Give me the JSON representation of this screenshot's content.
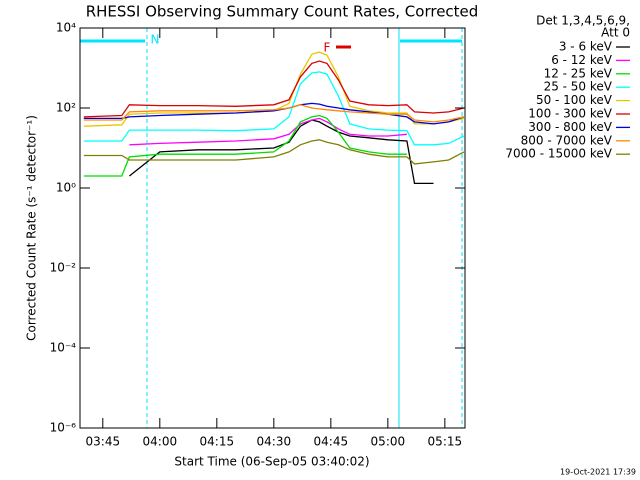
{
  "chart_data": {
    "type": "line",
    "title": "RHESSI Observing Summary Count Rates, Corrected",
    "xlabel": "Start Time (06-Sep-05 03:40:02)",
    "ylabel": "Corrected Count Rate (s⁻¹ detector⁻¹)",
    "legend_title": [
      "Det 1,3,4,5,6,9,",
      "Att 0"
    ],
    "annotations": [
      "N",
      "F"
    ],
    "timestamp": "19-Oct-2021 17:39",
    "log_y": true,
    "xlim": [
      219,
      320.3
    ],
    "ylim": [
      1e-06,
      10000
    ],
    "xticks": [
      {
        "value": 225,
        "label": "03:45"
      },
      {
        "value": 240,
        "label": "04:00"
      },
      {
        "value": 255,
        "label": "04:15"
      },
      {
        "value": 270,
        "label": "04:30"
      },
      {
        "value": 285,
        "label": "04:45"
      },
      {
        "value": 300,
        "label": "05:00"
      },
      {
        "value": 315,
        "label": "05:15"
      }
    ],
    "yticks": [
      {
        "value": 1e-06,
        "label": "10⁻⁶"
      },
      {
        "value": 0.0001,
        "label": "10⁻⁴"
      },
      {
        "value": 0.01,
        "label": "10⁻²"
      },
      {
        "value": 1,
        "label": "10⁰"
      },
      {
        "value": 100,
        "label": "10²"
      },
      {
        "value": 10000,
        "label": "10⁴"
      }
    ],
    "x": [
      220,
      230,
      232,
      240,
      250,
      260,
      270,
      274,
      277,
      280,
      282,
      284,
      287,
      290,
      295,
      300,
      305,
      307,
      312,
      316,
      320
    ],
    "series": [
      {
        "name": "3 - 6 keV",
        "color": "#000000",
        "values": [
          null,
          null,
          2,
          8,
          9,
          9,
          10,
          14,
          35,
          50,
          45,
          35,
          25,
          20,
          18,
          16,
          15,
          1.3,
          1.3,
          null,
          null
        ]
      },
      {
        "name": "6 - 12 keV",
        "color": "#ff00ff",
        "values": [
          null,
          null,
          12,
          13,
          14,
          15,
          17,
          22,
          40,
          50,
          55,
          45,
          30,
          22,
          20,
          20,
          22,
          null,
          null,
          null,
          null
        ]
      },
      {
        "name": "12 - 25 keV",
        "color": "#00dd00",
        "values": [
          2,
          2,
          6,
          7,
          7,
          7,
          8,
          15,
          45,
          60,
          65,
          55,
          25,
          10,
          8,
          7,
          7,
          null,
          null,
          null,
          null
        ]
      },
      {
        "name": "25 - 50 keV",
        "color": "#00ffff",
        "values": [
          15,
          15,
          28,
          28,
          28,
          27,
          30,
          60,
          400,
          750,
          800,
          700,
          200,
          40,
          30,
          28,
          27,
          12,
          12,
          13,
          20
        ]
      },
      {
        "name": "50 - 100 keV",
        "color": "#e6c800",
        "values": [
          35,
          38,
          70,
          75,
          75,
          75,
          85,
          130,
          700,
          2200,
          2500,
          2100,
          600,
          110,
          85,
          75,
          75,
          40,
          40,
          45,
          55
        ]
      },
      {
        "name": "100 - 300 keV",
        "color": "#dd0000",
        "values": [
          60,
          65,
          120,
          115,
          115,
          110,
          120,
          160,
          600,
          1300,
          1500,
          1300,
          500,
          150,
          120,
          115,
          120,
          80,
          75,
          80,
          100
        ]
      },
      {
        "name": "300 - 800 keV",
        "color": "#0000dd",
        "values": [
          55,
          55,
          60,
          65,
          70,
          75,
          85,
          100,
          120,
          130,
          125,
          110,
          100,
          90,
          80,
          70,
          60,
          45,
          40,
          45,
          60
        ]
      },
      {
        "name": "800 - 7000 keV",
        "color": "#ff8800",
        "values": [
          50,
          50,
          80,
          85,
          85,
          85,
          90,
          100,
          120,
          100,
          95,
          90,
          85,
          80,
          75,
          70,
          70,
          50,
          45,
          50,
          60
        ]
      },
      {
        "name": "7000 - 15000 keV",
        "color": "#808000",
        "values": [
          6.5,
          6.5,
          5,
          5,
          5,
          5,
          6,
          8,
          12,
          15,
          16,
          14,
          12,
          9,
          7,
          6,
          6,
          4,
          4.5,
          5,
          8
        ]
      }
    ]
  }
}
